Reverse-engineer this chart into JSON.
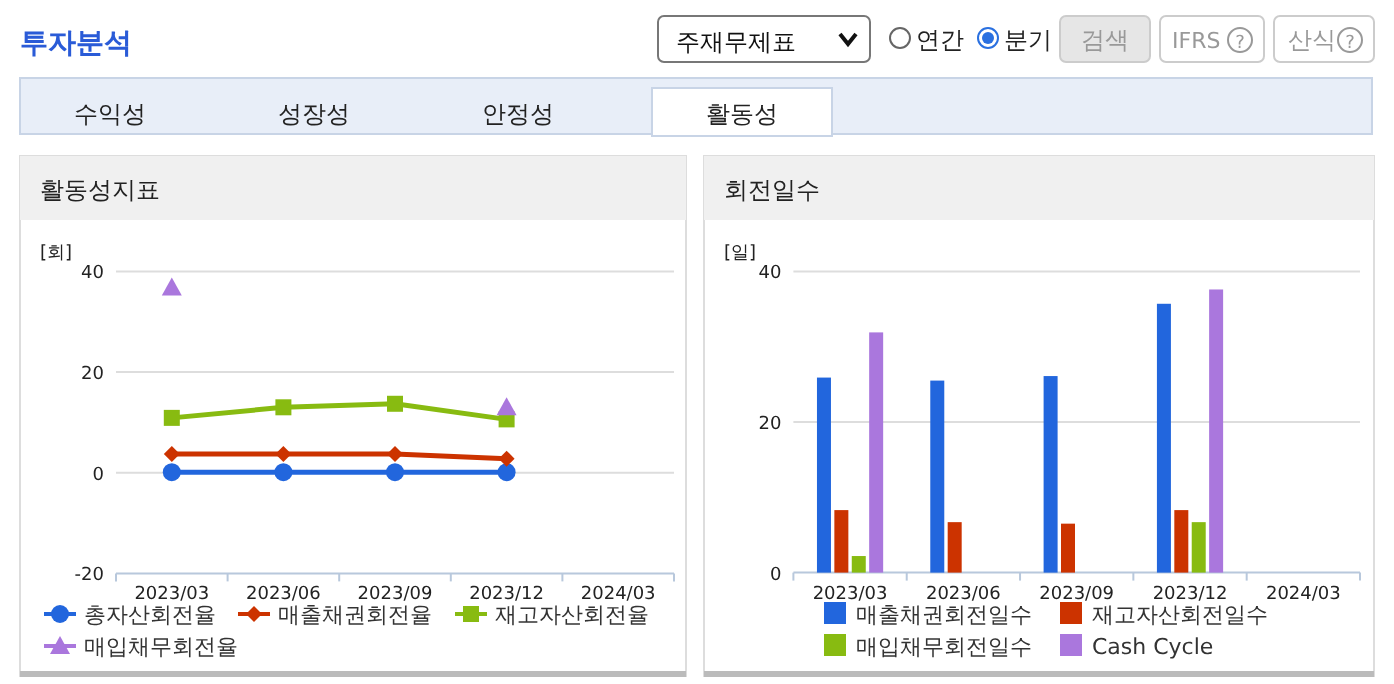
{
  "chart_data": [
    {
      "type": "line",
      "title": "활동성지표",
      "ylabel": "[회]",
      "categories": [
        "2023/03",
        "2023/06",
        "2023/09",
        "2023/12",
        "2024/03"
      ],
      "ylim": [
        -20,
        40
      ],
      "yticks": [
        -20,
        0,
        20,
        40
      ],
      "grid": "y",
      "legend": "bottom",
      "annotations": [
        "투자분석",
        "주재무제표",
        "연간",
        "분기",
        "검색",
        "IFRS",
        "?",
        "산식",
        "?",
        "수익성",
        "성장성",
        "안정성",
        "활동성"
      ],
      "series": [
        {
          "name": "총자산회전율",
          "color": "#2266dd",
          "marker": "circle",
          "values": [
            0.1,
            0.1,
            0.1,
            0.1,
            null
          ]
        },
        {
          "name": "매출채권회전율",
          "color": "#cc3300",
          "marker": "diamond",
          "values": [
            3.7,
            3.7,
            3.7,
            2.8,
            null
          ]
        },
        {
          "name": "재고자산회전율",
          "color": "#88bb11",
          "marker": "square",
          "values": [
            10.9,
            13.0,
            13.7,
            10.6,
            null
          ]
        },
        {
          "name": "매입채무회전율",
          "type": "scatter",
          "color": "#aa77dd",
          "marker": "triangle",
          "values": [
            36.8,
            null,
            null,
            13.0,
            null
          ]
        }
      ]
    },
    {
      "type": "bar",
      "title": "회전일수",
      "ylabel": "[일]",
      "categories": [
        "2023/03",
        "2023/06",
        "2023/09",
        "2023/12",
        "2024/03"
      ],
      "ylim": [
        0,
        40
      ],
      "yticks": [
        0,
        20,
        40
      ],
      "grid": "y",
      "legend": "bottom",
      "series": [
        {
          "name": "매출채권회전일수",
          "color": "#2266dd",
          "values": [
            25.9,
            25.5,
            26.1,
            35.7,
            null
          ]
        },
        {
          "name": "재고자산회전일수",
          "color": "#cc3300",
          "values": [
            8.3,
            6.7,
            6.5,
            8.3,
            null
          ]
        },
        {
          "name": "매입채무회전일수",
          "color": "#88bb11",
          "values": [
            2.2,
            null,
            null,
            6.7,
            null
          ]
        },
        {
          "name": "Cash Cycle",
          "color": "#aa77dd",
          "values": [
            31.9,
            null,
            null,
            37.6,
            null
          ]
        }
      ]
    }
  ]
}
